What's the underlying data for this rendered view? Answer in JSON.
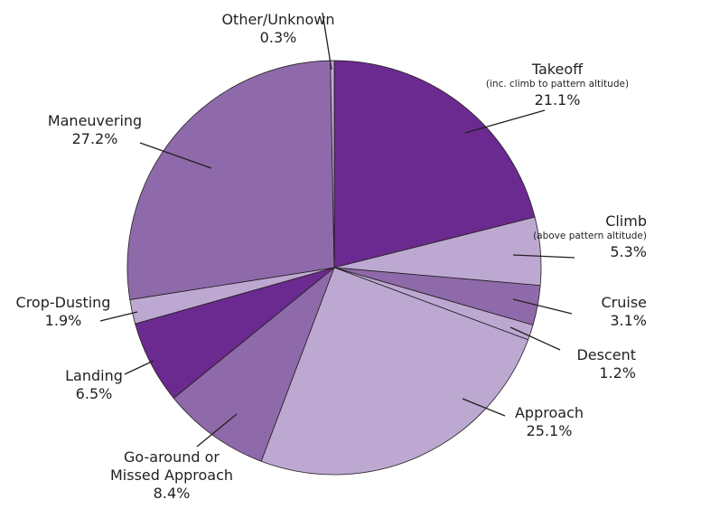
{
  "chart_data": {
    "type": "pie",
    "title": "",
    "start": "12 o'clock, clockwise",
    "slices": [
      {
        "label": "Takeoff",
        "sublabel": "(inc. climb to pattern altitude)",
        "value": 21.1,
        "value_label": "21.1%",
        "color": "#6b2a8f"
      },
      {
        "label": "Climb",
        "sublabel": "(above pattern altitude)",
        "value": 5.3,
        "value_label": "5.3%",
        "color": "#bda8d2"
      },
      {
        "label": "Cruise",
        "sublabel": "",
        "value": 3.1,
        "value_label": "3.1%",
        "color": "#8f6aaa"
      },
      {
        "label": "Descent",
        "sublabel": "",
        "value": 1.2,
        "value_label": "1.2%",
        "color": "#bda8d2"
      },
      {
        "label": "Approach",
        "sublabel": "",
        "value": 25.1,
        "value_label": "25.1%",
        "color": "#bda8d2"
      },
      {
        "label": "Go-around or Missed Approach",
        "label_lines": [
          "Go-around or",
          "Missed Approach"
        ],
        "sublabel": "",
        "value": 8.4,
        "value_label": "8.4%",
        "color": "#8f6aaa"
      },
      {
        "label": "Landing",
        "sublabel": "",
        "value": 6.5,
        "value_label": "6.5%",
        "color": "#6b2a8f"
      },
      {
        "label": "Crop-Dusting",
        "sublabel": "",
        "value": 1.9,
        "value_label": "1.9%",
        "color": "#bda8d2"
      },
      {
        "label": "Maneuvering",
        "sublabel": "",
        "value": 27.2,
        "value_label": "27.2%",
        "color": "#8f6aaa"
      },
      {
        "label": "Other/Unknown",
        "sublabel": "",
        "value": 0.3,
        "value_label": "0.3%",
        "color": "#bda8d2"
      }
    ]
  }
}
